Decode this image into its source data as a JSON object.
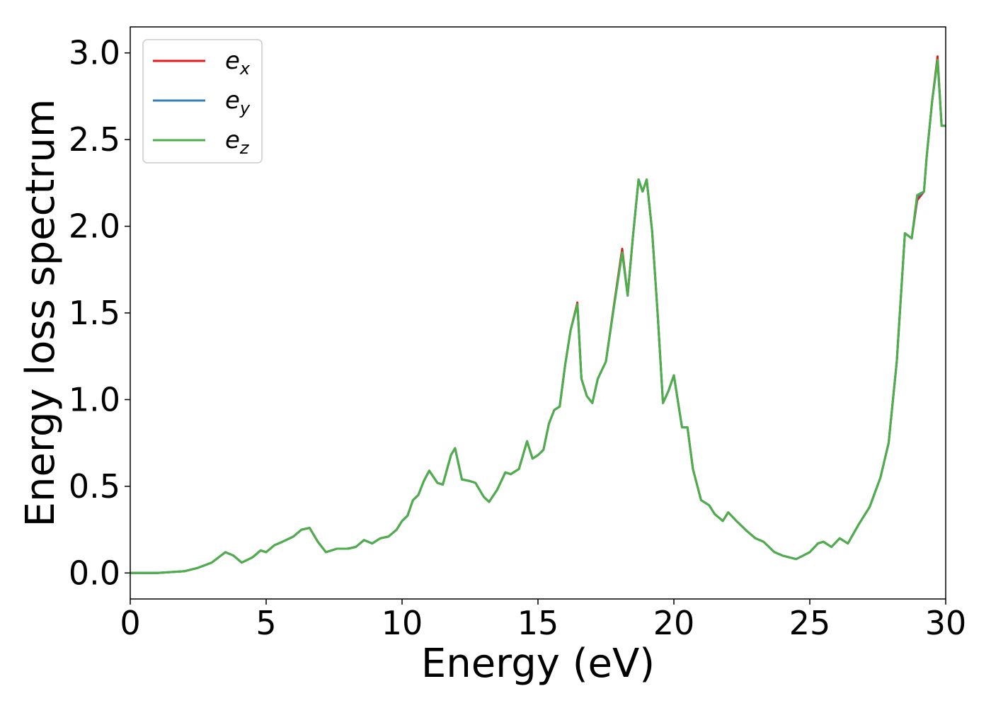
{
  "chart_data": {
    "type": "line",
    "title": "",
    "xlabel": "Energy (eV)",
    "ylabel": "Energy loss spectrum",
    "xlim": [
      0,
      30
    ],
    "ylim": [
      -0.15,
      3.15
    ],
    "xticks": [
      0,
      5,
      10,
      15,
      20,
      25,
      30
    ],
    "yticks": [
      0.0,
      0.5,
      1.0,
      1.5,
      2.0,
      2.5,
      3.0
    ],
    "xtick_labels": [
      "0",
      "5",
      "10",
      "15",
      "20",
      "25",
      "30"
    ],
    "ytick_labels": [
      "0.0",
      "0.5",
      "1.0",
      "1.5",
      "2.0",
      "2.5",
      "3.0"
    ],
    "grid": false,
    "legend_position": "top-left",
    "series": [
      {
        "name": "e_x",
        "color": "#e41a1c",
        "x": [
          0,
          1,
          2,
          2.5,
          3,
          3.5,
          3.8,
          4.1,
          4.5,
          4.8,
          5.0,
          5.3,
          5.6,
          6.0,
          6.3,
          6.6,
          6.9,
          7.2,
          7.6,
          8.0,
          8.3,
          8.6,
          8.9,
          9.2,
          9.5,
          9.8,
          10.0,
          10.2,
          10.4,
          10.6,
          10.8,
          11.0,
          11.3,
          11.5,
          11.8,
          11.95,
          12.2,
          12.5,
          12.7,
          13.0,
          13.2,
          13.5,
          13.8,
          14.0,
          14.3,
          14.6,
          14.8,
          15.0,
          15.2,
          15.4,
          15.6,
          15.8,
          16.0,
          16.2,
          16.45,
          16.6,
          16.8,
          17.0,
          17.2,
          17.5,
          17.8,
          18.1,
          18.3,
          18.5,
          18.7,
          18.85,
          19.0,
          19.2,
          19.4,
          19.6,
          19.8,
          20.0,
          20.3,
          20.5,
          20.7,
          21.0,
          21.3,
          21.5,
          21.8,
          22.0,
          22.3,
          22.7,
          23.0,
          23.3,
          23.7,
          24.0,
          24.5,
          25.0,
          25.3,
          25.5,
          25.8,
          26.1,
          26.4,
          26.8,
          27.2,
          27.6,
          27.9,
          28.2,
          28.5,
          28.75,
          28.95,
          29.2,
          29.3,
          29.5,
          29.7,
          29.85,
          30.0
        ],
        "values": [
          0.0,
          0.0,
          0.01,
          0.03,
          0.06,
          0.12,
          0.1,
          0.06,
          0.09,
          0.13,
          0.12,
          0.16,
          0.18,
          0.21,
          0.25,
          0.26,
          0.18,
          0.12,
          0.14,
          0.14,
          0.15,
          0.19,
          0.17,
          0.2,
          0.21,
          0.25,
          0.3,
          0.33,
          0.42,
          0.45,
          0.53,
          0.59,
          0.52,
          0.51,
          0.68,
          0.72,
          0.54,
          0.53,
          0.52,
          0.44,
          0.41,
          0.48,
          0.58,
          0.57,
          0.6,
          0.76,
          0.66,
          0.68,
          0.71,
          0.86,
          0.94,
          0.96,
          1.2,
          1.4,
          1.56,
          1.12,
          1.02,
          0.98,
          1.12,
          1.22,
          1.55,
          1.87,
          1.6,
          1.95,
          2.27,
          2.2,
          2.27,
          1.97,
          1.5,
          0.98,
          1.05,
          1.14,
          0.84,
          0.84,
          0.6,
          0.42,
          0.39,
          0.34,
          0.3,
          0.35,
          0.3,
          0.24,
          0.2,
          0.18,
          0.12,
          0.1,
          0.08,
          0.12,
          0.17,
          0.18,
          0.15,
          0.2,
          0.17,
          0.28,
          0.38,
          0.55,
          0.75,
          1.22,
          1.96,
          1.93,
          2.15,
          2.2,
          2.4,
          2.72,
          2.98,
          2.58,
          2.58
        ]
      },
      {
        "name": "e_y",
        "color": "#377eb8",
        "x": [
          0,
          1,
          2,
          2.5,
          3,
          3.5,
          3.8,
          4.1,
          4.5,
          4.8,
          5.0,
          5.3,
          5.6,
          6.0,
          6.3,
          6.6,
          6.9,
          7.2,
          7.6,
          8.0,
          8.3,
          8.6,
          8.9,
          9.2,
          9.5,
          9.8,
          10.0,
          10.2,
          10.4,
          10.6,
          10.8,
          11.0,
          11.3,
          11.5,
          11.8,
          11.95,
          12.2,
          12.5,
          12.7,
          13.0,
          13.2,
          13.5,
          13.8,
          14.0,
          14.3,
          14.6,
          14.8,
          15.0,
          15.2,
          15.4,
          15.6,
          15.8,
          16.0,
          16.2,
          16.45,
          16.6,
          16.8,
          17.0,
          17.2,
          17.5,
          17.8,
          18.1,
          18.3,
          18.5,
          18.7,
          18.85,
          19.0,
          19.2,
          19.4,
          19.6,
          19.8,
          20.0,
          20.3,
          20.5,
          20.7,
          21.0,
          21.3,
          21.5,
          21.8,
          22.0,
          22.3,
          22.7,
          23.0,
          23.3,
          23.7,
          24.0,
          24.5,
          25.0,
          25.3,
          25.5,
          25.8,
          26.1,
          26.4,
          26.8,
          27.2,
          27.6,
          27.9,
          28.2,
          28.5,
          28.75,
          28.95,
          29.2,
          29.3,
          29.5,
          29.7,
          29.85,
          30.0
        ],
        "values": [
          0.0,
          0.0,
          0.01,
          0.03,
          0.06,
          0.12,
          0.1,
          0.06,
          0.09,
          0.13,
          0.12,
          0.16,
          0.18,
          0.21,
          0.25,
          0.26,
          0.18,
          0.12,
          0.14,
          0.14,
          0.15,
          0.19,
          0.17,
          0.2,
          0.21,
          0.25,
          0.3,
          0.33,
          0.42,
          0.45,
          0.53,
          0.59,
          0.52,
          0.51,
          0.68,
          0.72,
          0.54,
          0.53,
          0.52,
          0.44,
          0.41,
          0.48,
          0.58,
          0.57,
          0.6,
          0.76,
          0.66,
          0.68,
          0.71,
          0.86,
          0.94,
          0.96,
          1.2,
          1.4,
          1.55,
          1.12,
          1.02,
          0.98,
          1.12,
          1.22,
          1.54,
          1.85,
          1.6,
          1.95,
          2.27,
          2.2,
          2.27,
          1.97,
          1.5,
          0.98,
          1.05,
          1.14,
          0.84,
          0.84,
          0.6,
          0.42,
          0.39,
          0.34,
          0.3,
          0.35,
          0.3,
          0.24,
          0.2,
          0.18,
          0.12,
          0.1,
          0.08,
          0.12,
          0.17,
          0.18,
          0.15,
          0.2,
          0.17,
          0.28,
          0.38,
          0.55,
          0.75,
          1.22,
          1.96,
          1.93,
          2.17,
          2.2,
          2.4,
          2.72,
          2.96,
          2.58,
          2.58
        ]
      },
      {
        "name": "e_z",
        "color": "#4daf4a",
        "x": [
          0,
          1,
          2,
          2.5,
          3,
          3.5,
          3.8,
          4.1,
          4.5,
          4.8,
          5.0,
          5.3,
          5.6,
          6.0,
          6.3,
          6.6,
          6.9,
          7.2,
          7.6,
          8.0,
          8.3,
          8.6,
          8.9,
          9.2,
          9.5,
          9.8,
          10.0,
          10.2,
          10.4,
          10.6,
          10.8,
          11.0,
          11.3,
          11.5,
          11.8,
          11.95,
          12.2,
          12.5,
          12.7,
          13.0,
          13.2,
          13.5,
          13.8,
          14.0,
          14.3,
          14.6,
          14.8,
          15.0,
          15.2,
          15.4,
          15.6,
          15.8,
          16.0,
          16.2,
          16.45,
          16.6,
          16.8,
          17.0,
          17.2,
          17.5,
          17.8,
          18.1,
          18.3,
          18.5,
          18.7,
          18.85,
          19.0,
          19.2,
          19.4,
          19.6,
          19.8,
          20.0,
          20.3,
          20.5,
          20.7,
          21.0,
          21.3,
          21.5,
          21.8,
          22.0,
          22.3,
          22.7,
          23.0,
          23.3,
          23.7,
          24.0,
          24.5,
          25.0,
          25.3,
          25.5,
          25.8,
          26.1,
          26.4,
          26.8,
          27.2,
          27.6,
          27.9,
          28.2,
          28.5,
          28.75,
          28.95,
          29.2,
          29.3,
          29.5,
          29.7,
          29.85,
          30.0
        ],
        "values": [
          0.0,
          0.0,
          0.01,
          0.03,
          0.06,
          0.12,
          0.1,
          0.06,
          0.09,
          0.13,
          0.12,
          0.16,
          0.18,
          0.21,
          0.25,
          0.26,
          0.18,
          0.12,
          0.14,
          0.14,
          0.15,
          0.19,
          0.17,
          0.2,
          0.21,
          0.25,
          0.3,
          0.33,
          0.42,
          0.45,
          0.53,
          0.59,
          0.52,
          0.51,
          0.68,
          0.72,
          0.54,
          0.53,
          0.52,
          0.44,
          0.41,
          0.48,
          0.58,
          0.57,
          0.6,
          0.76,
          0.66,
          0.68,
          0.71,
          0.86,
          0.94,
          0.96,
          1.2,
          1.4,
          1.55,
          1.12,
          1.02,
          0.98,
          1.12,
          1.22,
          1.54,
          1.85,
          1.6,
          1.95,
          2.27,
          2.2,
          2.27,
          1.97,
          1.5,
          0.98,
          1.05,
          1.14,
          0.84,
          0.84,
          0.6,
          0.42,
          0.39,
          0.34,
          0.3,
          0.35,
          0.3,
          0.24,
          0.2,
          0.18,
          0.12,
          0.1,
          0.08,
          0.12,
          0.17,
          0.18,
          0.15,
          0.2,
          0.17,
          0.28,
          0.38,
          0.55,
          0.75,
          1.22,
          1.96,
          1.93,
          2.18,
          2.2,
          2.4,
          2.72,
          2.96,
          2.58,
          2.58
        ]
      }
    ],
    "legend": [
      {
        "base": "e",
        "sub": "x",
        "color": "#e41a1c"
      },
      {
        "base": "e",
        "sub": "y",
        "color": "#377eb8"
      },
      {
        "base": "e",
        "sub": "z",
        "color": "#4daf4a"
      }
    ]
  }
}
